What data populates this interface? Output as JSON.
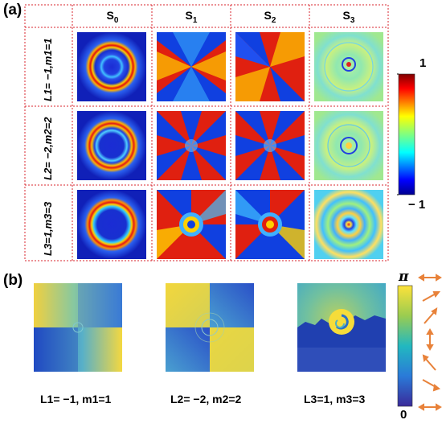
{
  "panel_a": {
    "label": "(a)",
    "columns": [
      "S",
      "S",
      "S",
      "S"
    ],
    "column_subscripts": [
      "0",
      "1",
      "2",
      "3"
    ],
    "rows": [
      {
        "label": "L1= −1,m1=1"
      },
      {
        "label": "L2= −2,m2=2"
      },
      {
        "label": "L3=1,m3=3"
      }
    ],
    "colorbar": {
      "max_label": "1",
      "min_label": "− 1"
    }
  },
  "panel_b": {
    "label": "(b)",
    "captions": [
      "L1= −1, m1=1",
      "L2= −2, m2=2",
      "L3=1, m3=3"
    ],
    "colorbar": {
      "max_label": "π",
      "min_label": "0"
    }
  },
  "colors": {
    "grid_border": "#d9262c",
    "jet_low": "#1020c0",
    "jet_high": "#8a0000",
    "phase_low": "#3a3aa0",
    "phase_high": "#fbe23a",
    "arrow": "#e8823a"
  }
}
